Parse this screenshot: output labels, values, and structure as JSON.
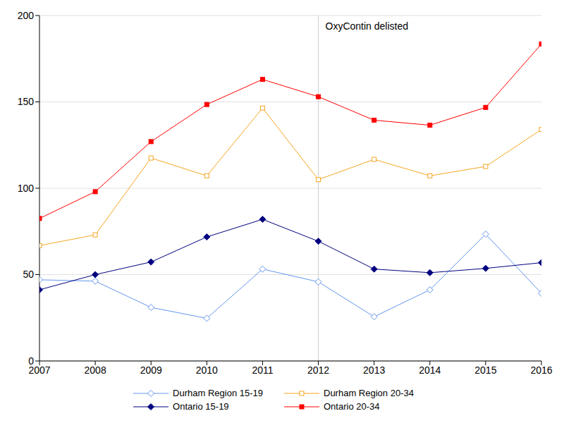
{
  "chart_data": {
    "type": "line",
    "x": [
      2007,
      2008,
      2009,
      2010,
      2011,
      2012,
      2013,
      2014,
      2015,
      2016
    ],
    "xlim": [
      2007,
      2016
    ],
    "xticks": [
      2007,
      2008,
      2009,
      2010,
      2011,
      2012,
      2013,
      2014,
      2015,
      2016
    ],
    "ylim": [
      0,
      200
    ],
    "yticks": [
      0,
      50,
      100,
      150,
      200
    ],
    "grid": true,
    "legend": "bottom",
    "annotations": [
      {
        "text": "OxyContin delisted",
        "x": 2012
      }
    ],
    "series": [
      {
        "name": "Durham Region 15-19",
        "color": "#6495ed",
        "marker": "diamond_open",
        "values": [
          47,
          46.2,
          31,
          24.7,
          53.2,
          45.8,
          25.6,
          41.2,
          73.4,
          39.2
        ]
      },
      {
        "name": "Durham Region 20-34",
        "color": "#f5a623",
        "marker": "square_open",
        "values": [
          66.8,
          73,
          117.5,
          107.2,
          146.4,
          105,
          116.7,
          107.2,
          112.6,
          134
        ]
      },
      {
        "name": "Ontario 15-19",
        "color": "#00007f",
        "marker": "diamond",
        "values": [
          41.2,
          50,
          57.3,
          71.8,
          82,
          69.3,
          53.2,
          51.1,
          53.6,
          56.9
        ]
      },
      {
        "name": "Ontario 20-34",
        "color": "#ff0000",
        "marker": "square",
        "values": [
          82.5,
          98,
          127,
          148.5,
          163,
          153,
          139.4,
          136.5,
          146.8,
          183.5
        ]
      }
    ]
  }
}
